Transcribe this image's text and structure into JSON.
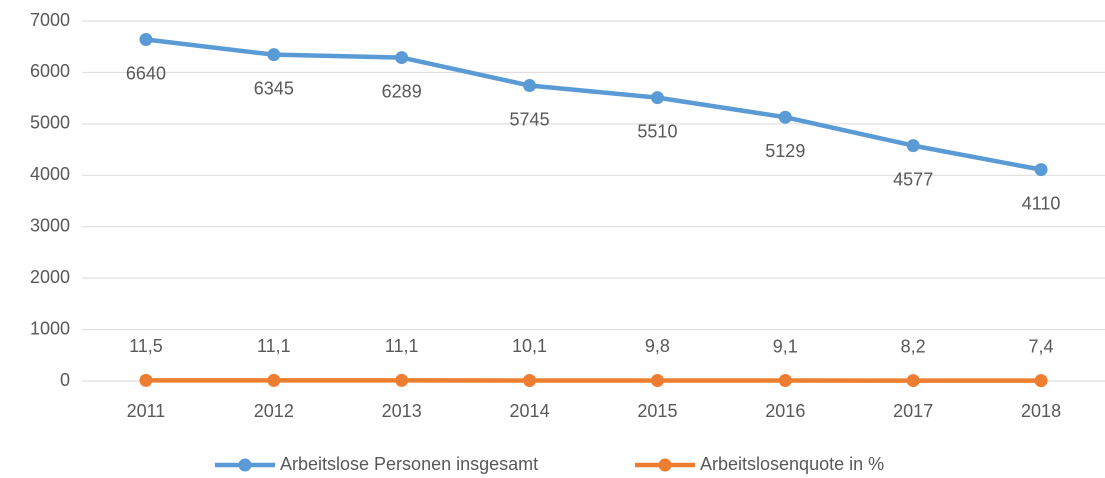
{
  "chart_data": {
    "type": "line",
    "categories": [
      "2011",
      "2012",
      "2013",
      "2014",
      "2015",
      "2016",
      "2017",
      "2018"
    ],
    "series": [
      {
        "name": "Arbeitslose Personen insgesamt",
        "color": "#5b9bd5",
        "values": [
          6640,
          6345,
          6289,
          5745,
          5510,
          5129,
          4577,
          4110
        ]
      },
      {
        "name": "Arbeitslosenquote in %",
        "color": "#ed7d31",
        "values": [
          11.5,
          11.1,
          11.1,
          10.1,
          9.8,
          9.1,
          8.2,
          7.4
        ],
        "value_labels": [
          "11,5",
          "11,1",
          "11,1",
          "10,1",
          "9,8",
          "9,1",
          "8,2",
          "7,4"
        ]
      }
    ],
    "ylim": [
      0,
      7000
    ],
    "yticks": [
      0,
      1000,
      2000,
      3000,
      4000,
      5000,
      6000,
      7000
    ],
    "grid": true,
    "legend": "bottom"
  }
}
